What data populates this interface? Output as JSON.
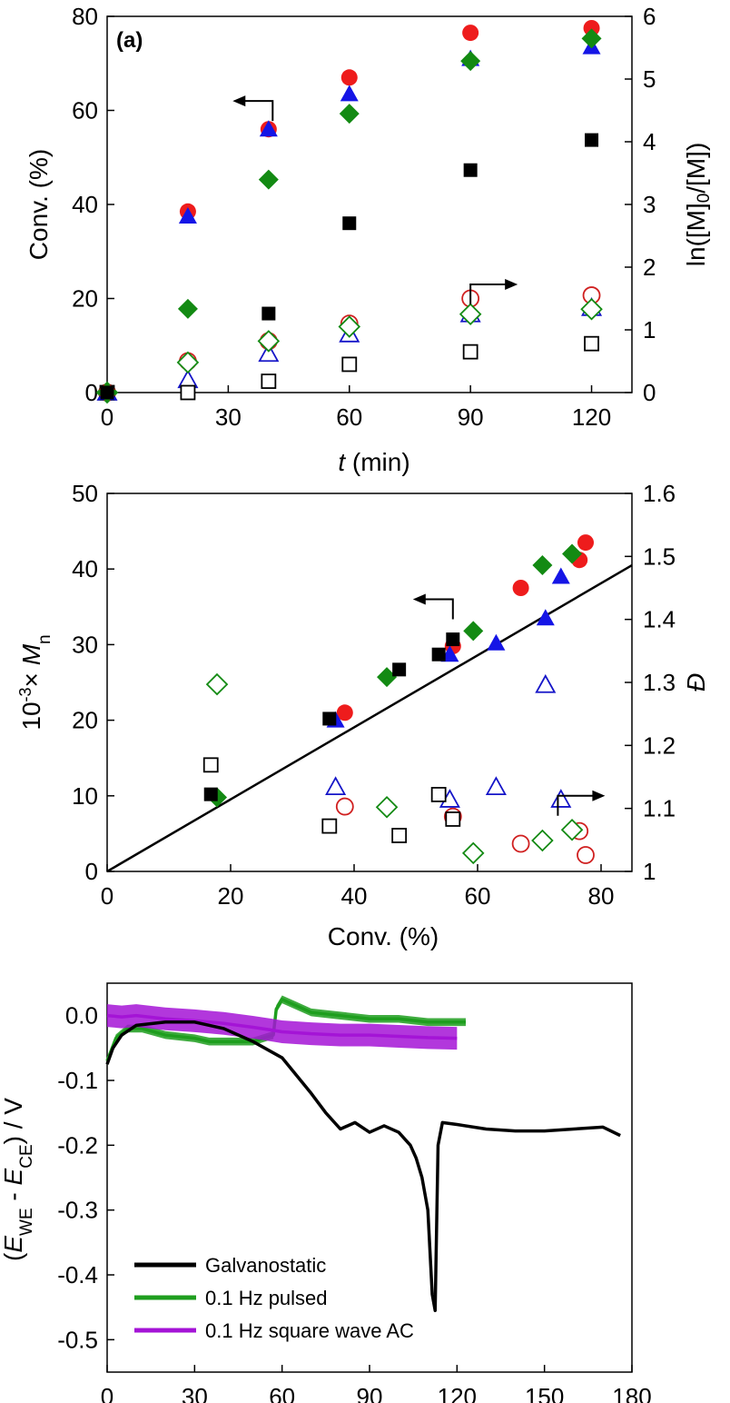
{
  "chart_data": [
    {
      "type": "scatter",
      "panel_label": "(a)",
      "xlabel": "t",
      "xlabel_unit": " (min)",
      "ylabel": "Conv. (%)",
      "y2label": "ln([M]0/[M])",
      "xlim": [
        0,
        130
      ],
      "ylim": [
        0,
        80
      ],
      "y2lim": [
        0,
        6
      ],
      "xticks": [
        0,
        30,
        60,
        90,
        120
      ],
      "yticks": [
        0,
        20,
        40,
        60,
        80
      ],
      "y2ticks": [
        0,
        1,
        2,
        3,
        4,
        5,
        6
      ],
      "grid": false,
      "series": [
        {
          "marker": "circle",
          "filled": true,
          "color": "#ee1c1c",
          "axis": "left",
          "points": [
            [
              0,
              0
            ],
            [
              20,
              38.5
            ],
            [
              40,
              56
            ],
            [
              60,
              67
            ],
            [
              90,
              76.5
            ],
            [
              120,
              77.5
            ]
          ]
        },
        {
          "marker": "triangle",
          "filled": true,
          "color": "#1515e6",
          "axis": "left",
          "points": [
            [
              0,
              0
            ],
            [
              20,
              37.5
            ],
            [
              40,
              56
            ],
            [
              60,
              63.5
            ],
            [
              90,
              71
            ],
            [
              120,
              73.5
            ]
          ]
        },
        {
          "marker": "diamond",
          "filled": true,
          "color": "#138a13",
          "axis": "left",
          "points": [
            [
              0,
              0
            ],
            [
              20,
              17.8
            ],
            [
              40,
              45.3
            ],
            [
              60,
              59.3
            ],
            [
              90,
              70.5
            ],
            [
              120,
              75.3
            ]
          ]
        },
        {
          "marker": "square",
          "filled": true,
          "color": "#000000",
          "axis": "left",
          "points": [
            [
              0,
              0
            ],
            [
              40,
              16.8
            ],
            [
              60,
              36
            ],
            [
              90,
              47.3
            ],
            [
              120,
              53.7
            ]
          ]
        },
        {
          "marker": "circle",
          "filled": false,
          "color": "#d02020",
          "axis": "right",
          "points": [
            [
              0,
              0
            ],
            [
              20,
              0.5
            ],
            [
              40,
              0.82
            ],
            [
              60,
              1.1
            ],
            [
              90,
              1.5
            ],
            [
              120,
              1.55
            ]
          ]
        },
        {
          "marker": "triangle",
          "filled": false,
          "color": "#1515c8",
          "axis": "right",
          "points": [
            [
              0,
              0
            ],
            [
              20,
              0.2
            ],
            [
              40,
              0.62
            ],
            [
              60,
              0.93
            ],
            [
              90,
              1.25
            ],
            [
              120,
              1.35
            ]
          ]
        },
        {
          "marker": "diamond",
          "filled": false,
          "color": "#138a13",
          "axis": "right",
          "points": [
            [
              0,
              0
            ],
            [
              20,
              0.48
            ],
            [
              40,
              0.82
            ],
            [
              60,
              1.05
            ],
            [
              90,
              1.25
            ],
            [
              120,
              1.33
            ]
          ]
        },
        {
          "marker": "square",
          "filled": false,
          "color": "#000000",
          "axis": "right",
          "points": [
            [
              0,
              0
            ],
            [
              20,
              0
            ],
            [
              40,
              0.18
            ],
            [
              60,
              0.45
            ],
            [
              90,
              0.65
            ],
            [
              120,
              0.78
            ]
          ]
        }
      ],
      "annotations": [
        {
          "kind": "arrow-left",
          "x": 41,
          "y": 62
        },
        {
          "kind": "arrow-right",
          "x": 90,
          "y": 23
        }
      ]
    },
    {
      "type": "scatter",
      "xlabel": "Conv. (%)",
      "ylabel": "10-3× Mn",
      "y2label": "Đ",
      "xlim": [
        0,
        85
      ],
      "ylim": [
        0,
        50
      ],
      "y2lim": [
        1.0,
        1.6
      ],
      "xticks": [
        0,
        20,
        40,
        60,
        80
      ],
      "yticks": [
        0,
        10,
        20,
        30,
        40,
        50
      ],
      "y2ticks": [
        1.0,
        1.1,
        1.2,
        1.3,
        1.4,
        1.5,
        1.6
      ],
      "grid": false,
      "theory_line": {
        "x": [
          0,
          85
        ],
        "y": [
          0,
          40.5
        ],
        "color": "#000000"
      },
      "series": [
        {
          "marker": "circle",
          "filled": true,
          "color": "#ee1c1c",
          "axis": "left",
          "points": [
            [
              38.5,
              21
            ],
            [
              56,
              29.8
            ],
            [
              67,
              37.5
            ],
            [
              76.5,
              41.2
            ],
            [
              77.5,
              43.5
            ]
          ]
        },
        {
          "marker": "triangle",
          "filled": true,
          "color": "#1515e6",
          "axis": "left",
          "points": [
            [
              37,
              20
            ],
            [
              55.5,
              28.7
            ],
            [
              63,
              30.2
            ],
            [
              71,
              33.5
            ],
            [
              73.5,
              39
            ]
          ]
        },
        {
          "marker": "diamond",
          "filled": true,
          "color": "#138a13",
          "axis": "left",
          "points": [
            [
              17.8,
              9.8
            ],
            [
              45.3,
              25.7
            ],
            [
              59.3,
              31.8
            ],
            [
              70.5,
              40.5
            ],
            [
              75.3,
              42
            ]
          ]
        },
        {
          "marker": "square",
          "filled": true,
          "color": "#000000",
          "axis": "left",
          "points": [
            [
              16.8,
              10.2
            ],
            [
              36,
              20.2
            ],
            [
              47.3,
              26.7
            ],
            [
              53.7,
              28.7
            ],
            [
              56,
              30.7
            ]
          ]
        },
        {
          "marker": "circle",
          "filled": false,
          "color": "#d02020",
          "axis": "right",
          "points": [
            [
              38.5,
              1.103
            ],
            [
              56,
              1.087
            ],
            [
              67,
              1.044
            ],
            [
              76.5,
              1.064
            ],
            [
              77.5,
              1.026
            ]
          ]
        },
        {
          "marker": "triangle",
          "filled": false,
          "color": "#1515c8",
          "axis": "right",
          "points": [
            [
              37,
              1.134
            ],
            [
              55.5,
              1.114
            ],
            [
              63,
              1.134
            ],
            [
              71,
              1.296
            ],
            [
              73.5,
              1.114
            ]
          ]
        },
        {
          "marker": "diamond",
          "filled": false,
          "color": "#138a13",
          "axis": "right",
          "points": [
            [
              17.8,
              1.297
            ],
            [
              45.3,
              1.102
            ],
            [
              59.3,
              1.029
            ],
            [
              70.5,
              1.049
            ],
            [
              75.3,
              1.066
            ]
          ]
        },
        {
          "marker": "square",
          "filled": false,
          "color": "#000000",
          "axis": "right",
          "points": [
            [
              16.8,
              1.169
            ],
            [
              36,
              1.072
            ],
            [
              47.3,
              1.057
            ],
            [
              53.7,
              1.122
            ],
            [
              56,
              1.083
            ]
          ]
        }
      ],
      "annotations": [
        {
          "kind": "arrow-left",
          "x": 56,
          "y": 36
        },
        {
          "kind": "arrow-right",
          "x": 73,
          "y": 10
        }
      ]
    },
    {
      "type": "line",
      "xlabel": "",
      "ylabel": "(EWE - ECE) / V",
      "xlim": [
        0,
        180
      ],
      "ylim": [
        -0.55,
        0.05
      ],
      "xticks": [
        0,
        30,
        60,
        90,
        120,
        150,
        180
      ],
      "yticks": [
        0.0,
        -0.1,
        -0.2,
        -0.3,
        -0.4,
        -0.5
      ],
      "ytick_labels": [
        "0.0",
        "-0.1",
        "-0.2",
        "-0.3",
        "-0.4",
        "-0.5"
      ],
      "grid": false,
      "legend_position": "bottom-left",
      "series": [
        {
          "name": "Galvanostatic",
          "color": "#000000",
          "x": [
            0,
            2,
            5,
            10,
            20,
            30,
            40,
            50,
            60,
            70,
            75,
            80,
            85,
            90,
            95,
            100,
            104,
            106,
            108,
            110,
            111.5,
            112.5,
            113.5,
            115,
            120,
            130,
            140,
            150,
            160,
            170,
            176
          ],
          "y": [
            -0.075,
            -0.05,
            -0.03,
            -0.015,
            -0.01,
            -0.01,
            -0.02,
            -0.04,
            -0.065,
            -0.12,
            -0.15,
            -0.175,
            -0.165,
            -0.18,
            -0.17,
            -0.18,
            -0.2,
            -0.22,
            -0.25,
            -0.3,
            -0.43,
            -0.455,
            -0.2,
            -0.165,
            -0.168,
            -0.175,
            -0.178,
            -0.178,
            -0.175,
            -0.172,
            -0.185
          ]
        },
        {
          "name": "0.1 Hz pulsed",
          "color": "#1e9e1e",
          "x": [
            0,
            3,
            7,
            12,
            20,
            30,
            35,
            40,
            50,
            57,
            58,
            60,
            65,
            70,
            80,
            90,
            100,
            110,
            120,
            123
          ],
          "y": [
            -0.07,
            -0.035,
            -0.02,
            -0.02,
            -0.03,
            -0.035,
            -0.04,
            -0.04,
            -0.04,
            -0.03,
            0.01,
            0.025,
            0.015,
            0.005,
            0.0,
            -0.005,
            -0.005,
            -0.01,
            -0.01,
            -0.01
          ],
          "band": 0.012
        },
        {
          "name": "0.1 Hz square wave AC",
          "color": "#a414d6",
          "x": [
            0,
            5,
            10,
            20,
            30,
            35,
            40,
            50,
            56,
            60,
            70,
            80,
            90,
            100,
            110,
            120
          ],
          "y": [
            0.0,
            -0.002,
            0.0,
            -0.005,
            -0.008,
            -0.01,
            -0.012,
            -0.018,
            -0.022,
            -0.025,
            -0.028,
            -0.03,
            -0.03,
            -0.032,
            -0.034,
            -0.035
          ],
          "band": 0.035
        }
      ]
    }
  ]
}
